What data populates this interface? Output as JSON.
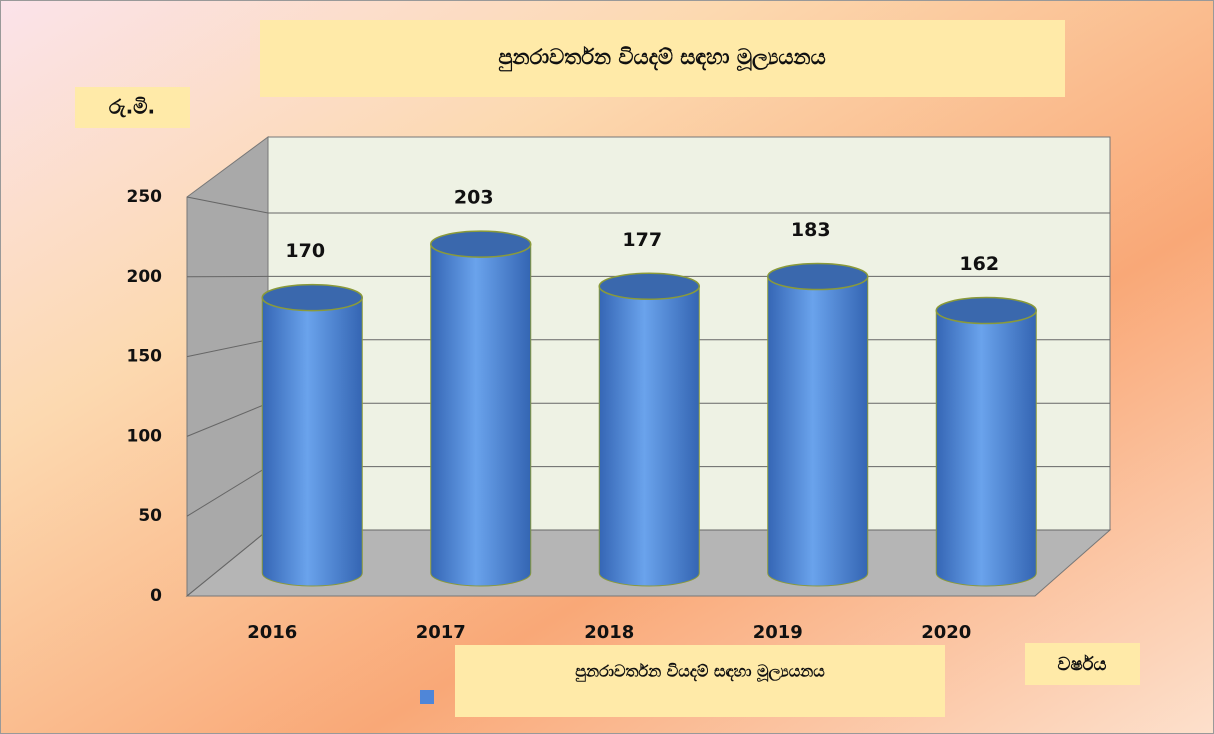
{
  "chart_data": {
    "type": "cylinder",
    "title": "පුනරාවර්තන වියදම් සඳහා මූල්‍යයනය",
    "y_label": "රු.මි.",
    "x_label": "වර්ෂය",
    "categories": [
      "2016",
      "2017",
      "2018",
      "2019",
      "2020"
    ],
    "series": [
      {
        "name": "පුනරාවර්තන වියදම් සඳහා මූල්‍යයනය",
        "color": "#4f86d8",
        "values": [
          170,
          203,
          177,
          183,
          162
        ]
      }
    ],
    "ylim": [
      0,
      250
    ],
    "yticks": [
      0,
      50,
      100,
      150,
      200,
      250
    ],
    "grid": true
  }
}
